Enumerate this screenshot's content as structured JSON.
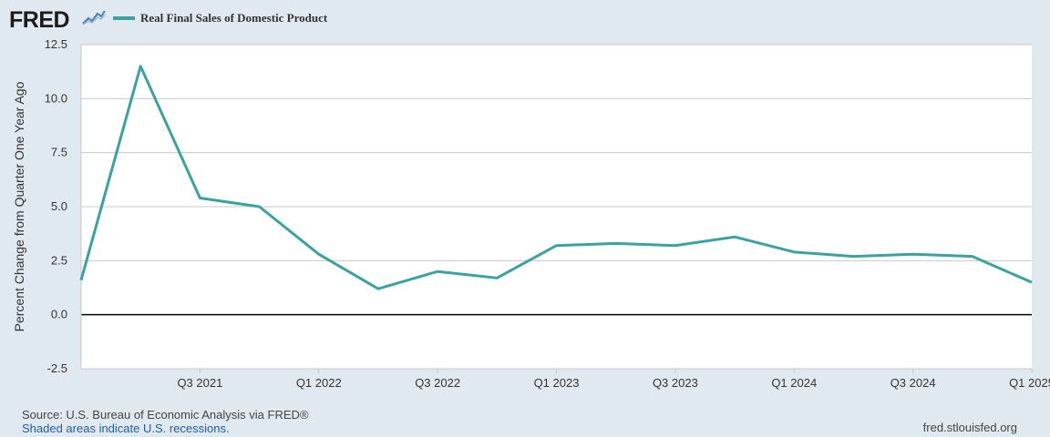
{
  "header": {
    "logo_text": "FRED",
    "logo_icon": "line-chart-icon",
    "legend_label": "Real Final Sales of Domestic Product",
    "legend_color": "#3aa39f"
  },
  "chart_data": {
    "type": "line",
    "title": "",
    "xlabel": "",
    "ylabel": "Percent Change from Quarter One Year Ago",
    "ylim": [
      -2.5,
      12.5
    ],
    "yticks": [
      "12.5",
      "10.0",
      "7.5",
      "5.0",
      "2.5",
      "0.0",
      "-2.5"
    ],
    "ytick_values": [
      12.5,
      10.0,
      7.5,
      5.0,
      2.5,
      0.0,
      -2.5
    ],
    "x": [
      "Q1 2021",
      "Q2 2021",
      "Q3 2021",
      "Q4 2021",
      "Q1 2022",
      "Q2 2022",
      "Q3 2022",
      "Q4 2022",
      "Q1 2023",
      "Q2 2023",
      "Q3 2023",
      "Q4 2023",
      "Q1 2024",
      "Q2 2024",
      "Q3 2024",
      "Q4 2024",
      "Q1 2025"
    ],
    "xtick_labels": [
      "Q3 2021",
      "Q1 2022",
      "Q3 2022",
      "Q1 2023",
      "Q3 2023",
      "Q1 2024",
      "Q3 2024",
      "Q1 2025"
    ],
    "series": [
      {
        "name": "Real Final Sales of Domestic Product",
        "color": "#3aa39f",
        "values": [
          1.6,
          11.5,
          5.4,
          5.0,
          2.8,
          1.2,
          2.0,
          1.7,
          3.2,
          3.3,
          3.2,
          3.6,
          2.9,
          2.7,
          2.8,
          2.7,
          1.5
        ]
      }
    ],
    "grid": true,
    "legend": "top-left"
  },
  "footer": {
    "source": "Source: U.S. Bureau of Economic Analysis via FRED®",
    "recession_note": "Shaded areas indicate U.S. recessions.",
    "site": "fred.stlouisfed.org"
  }
}
